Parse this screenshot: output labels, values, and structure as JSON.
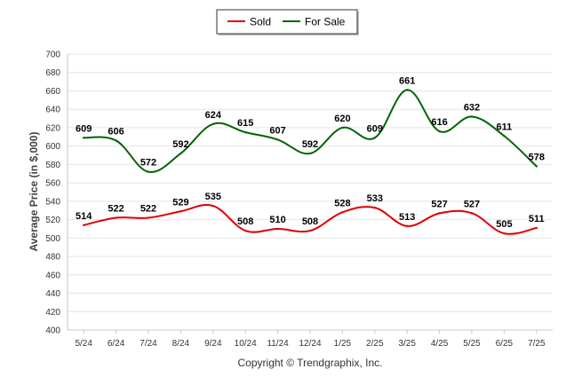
{
  "chart_data": {
    "type": "line",
    "categories": [
      "5/24",
      "6/24",
      "7/24",
      "8/24",
      "9/24",
      "10/24",
      "11/24",
      "12/24",
      "1/25",
      "2/25",
      "3/25",
      "4/25",
      "5/25",
      "6/25",
      "7/25"
    ],
    "series": [
      {
        "name": "Sold",
        "color": "#e00000",
        "values": [
          514,
          522,
          522,
          529,
          535,
          508,
          510,
          508,
          528,
          533,
          513,
          527,
          527,
          505,
          511
        ]
      },
      {
        "name": "For Sale",
        "color": "#006400",
        "values": [
          609,
          606,
          572,
          592,
          624,
          615,
          607,
          592,
          620,
          609,
          661,
          616,
          632,
          611,
          578
        ]
      }
    ],
    "ylabel": "Average Price (in $,000)",
    "xlabel": "",
    "ylim": [
      400,
      700
    ],
    "yticks": [
      400,
      420,
      440,
      460,
      480,
      500,
      520,
      540,
      560,
      580,
      600,
      620,
      640,
      660,
      680,
      700
    ],
    "grid": true,
    "legend_position": "top-center"
  },
  "footer": {
    "copyright": "Copyright © Trendgraphix, Inc."
  }
}
